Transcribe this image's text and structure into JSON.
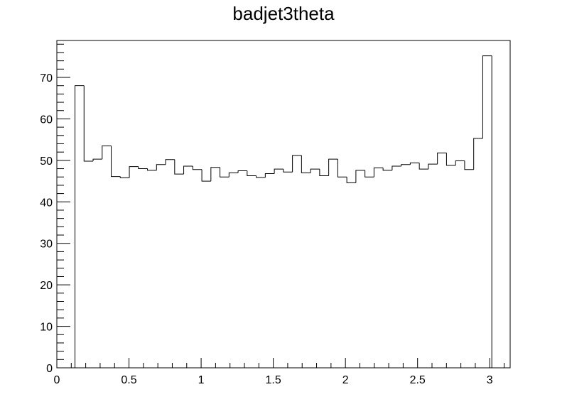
{
  "chart_data": {
    "type": "bar",
    "style": "step-histogram",
    "title": "badjet3theta",
    "xlabel": "",
    "ylabel": "",
    "xlim": [
      0,
      3.1416
    ],
    "ylim": [
      0,
      78.9
    ],
    "grid": false,
    "legend": "none",
    "bin_width": 0.0628,
    "x_bin_edges_start": 0.1257,
    "x_ticks": [
      "0",
      "0.5",
      "1",
      "1.5",
      "2",
      "2.5",
      "3"
    ],
    "x_tick_values": [
      0,
      0.5,
      1,
      1.5,
      2,
      2.5,
      3
    ],
    "y_ticks": [
      "0",
      "10",
      "20",
      "30",
      "40",
      "50",
      "60",
      "70"
    ],
    "y_tick_values": [
      0,
      10,
      20,
      30,
      40,
      50,
      60,
      70
    ],
    "values": [
      68,
      49.8,
      50.3,
      53.5,
      46.1,
      45.8,
      48.5,
      48,
      47.6,
      49,
      50.2,
      46.7,
      48.6,
      47.8,
      45,
      48.3,
      46,
      47,
      47.5,
      46.3,
      45.9,
      46.8,
      47.9,
      47.2,
      51.2,
      47,
      47.9,
      46.3,
      50.3,
      46,
      44.6,
      47.6,
      46,
      48.2,
      47.6,
      48.6,
      49,
      49.4,
      47.9,
      49.1,
      51.8,
      48.8,
      49.9,
      47.8,
      55.3,
      75.2
    ],
    "colors": {
      "line": "#000000",
      "background": "#ffffff"
    }
  }
}
